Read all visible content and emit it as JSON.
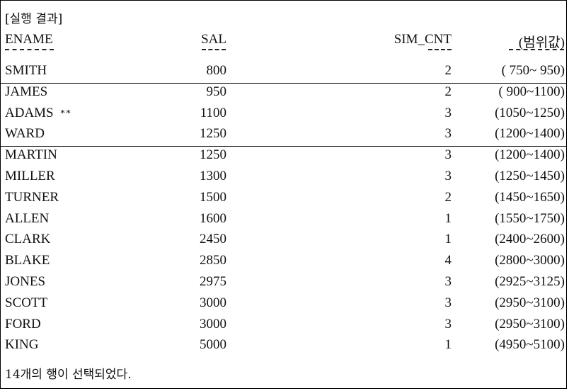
{
  "title": "[실행 결과]",
  "headers": {
    "ename": "ENAME",
    "sal": "SAL",
    "sim_cnt": "SIM_CNT",
    "range": "(범위값)"
  },
  "rows": [
    {
      "ename": "SMITH",
      "mark": "",
      "sal": "800",
      "sim_cnt": "2",
      "range": "( 750~ 950)"
    },
    {
      "ename": "JAMES",
      "mark": "",
      "sal": "950",
      "sim_cnt": "2",
      "range": "( 900~1100)"
    },
    {
      "ename": "ADAMS",
      "mark": "**",
      "sal": "1100",
      "sim_cnt": "3",
      "range": "(1050~1250)"
    },
    {
      "ename": "WARD",
      "mark": "",
      "sal": "1250",
      "sim_cnt": "3",
      "range": "(1200~1400)"
    },
    {
      "ename": "MARTIN",
      "mark": "",
      "sal": "1250",
      "sim_cnt": "3",
      "range": "(1200~1400)"
    },
    {
      "ename": "MILLER",
      "mark": "",
      "sal": "1300",
      "sim_cnt": "3",
      "range": "(1250~1450)"
    },
    {
      "ename": "TURNER",
      "mark": "",
      "sal": "1500",
      "sim_cnt": "2",
      "range": "(1450~1650)"
    },
    {
      "ename": "ALLEN",
      "mark": "",
      "sal": "1600",
      "sim_cnt": "1",
      "range": "(1550~1750)"
    },
    {
      "ename": "CLARK",
      "mark": "",
      "sal": "2450",
      "sim_cnt": "1",
      "range": "(2400~2600)"
    },
    {
      "ename": "BLAKE",
      "mark": "",
      "sal": "2850",
      "sim_cnt": "4",
      "range": "(2800~3000)"
    },
    {
      "ename": "JONES",
      "mark": "",
      "sal": "2975",
      "sim_cnt": "3",
      "range": "(2925~3125)"
    },
    {
      "ename": "SCOTT",
      "mark": "",
      "sal": "3000",
      "sim_cnt": "3",
      "range": "(2950~3100)"
    },
    {
      "ename": "FORD",
      "mark": "",
      "sal": "3000",
      "sim_cnt": "3",
      "range": "(2950~3100)"
    },
    {
      "ename": "KING",
      "mark": "",
      "sal": "5000",
      "sim_cnt": "1",
      "range": "(4950~5100)"
    }
  ],
  "footer": "14개의 행이 선택되었다."
}
